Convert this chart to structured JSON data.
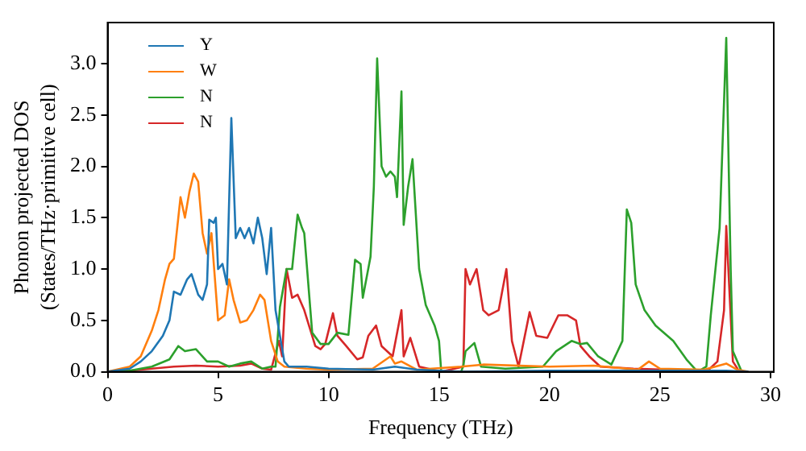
{
  "chart_data": {
    "type": "line",
    "xlabel": "Frequency (THz)",
    "ylabel": "Phonon projected DOS\n(States/THz·primitive cell)",
    "xlim": [
      0,
      30.15
    ],
    "ylim": [
      0,
      3.4
    ],
    "xticks": [
      0,
      5,
      10,
      15,
      20,
      25,
      30
    ],
    "yticks": [
      {
        "value": 0,
        "label": "0.0"
      },
      0.5,
      {
        "value": 1,
        "label": "1.0"
      },
      1.5,
      {
        "value": 2,
        "label": "2.0"
      },
      2.5,
      {
        "value": 3,
        "label": "3.0"
      }
    ],
    "legend": "top left",
    "grid": false,
    "marker": "none",
    "line_style": "solid",
    "series": [
      {
        "name": "Y",
        "color": "#1f77b4",
        "x": [
          0,
          1,
          1.5,
          2,
          2.5,
          2.8,
          3,
          3.3,
          3.6,
          3.8,
          4.1,
          4.3,
          4.5,
          4.6,
          4.8,
          4.9,
          5.0,
          5.2,
          5.4,
          5.6,
          5.8,
          6.0,
          6.2,
          6.4,
          6.6,
          6.8,
          7.0,
          7.2,
          7.4,
          7.6,
          7.8,
          8.0,
          8.2,
          9,
          10,
          12,
          13,
          14,
          16,
          20,
          28,
          29
        ],
        "values": [
          0,
          0.03,
          0.1,
          0.2,
          0.35,
          0.5,
          0.78,
          0.75,
          0.9,
          0.95,
          0.75,
          0.7,
          0.85,
          1.48,
          1.45,
          1.5,
          1.0,
          1.05,
          0.85,
          2.47,
          1.3,
          1.4,
          1.3,
          1.4,
          1.25,
          1.5,
          1.3,
          0.95,
          1.4,
          0.6,
          0.35,
          0.1,
          0.05,
          0.05,
          0.03,
          0.02,
          0.05,
          0.02,
          0,
          0.01,
          0.01,
          0
        ]
      },
      {
        "name": "W",
        "color": "#ff7f0e",
        "x": [
          0,
          1,
          1.5,
          2,
          2.3,
          2.6,
          2.8,
          3.0,
          3.3,
          3.5,
          3.7,
          3.9,
          4.1,
          4.3,
          4.5,
          4.7,
          5.0,
          5.3,
          5.5,
          5.7,
          6.0,
          6.3,
          6.6,
          6.9,
          7.1,
          7.4,
          7.7,
          8,
          9,
          10,
          12,
          12.8,
          13,
          13.3,
          14,
          16,
          17,
          20,
          22,
          24,
          24.5,
          25,
          27,
          28,
          28.5,
          29
        ],
        "values": [
          0,
          0.05,
          0.15,
          0.4,
          0.6,
          0.9,
          1.05,
          1.1,
          1.7,
          1.5,
          1.75,
          1.93,
          1.85,
          1.35,
          1.15,
          1.35,
          0.5,
          0.55,
          0.9,
          0.7,
          0.48,
          0.5,
          0.6,
          0.75,
          0.7,
          0.3,
          0.1,
          0.05,
          0.03,
          0.02,
          0.03,
          0.15,
          0.08,
          0.1,
          0.02,
          0.05,
          0.07,
          0.05,
          0.06,
          0.02,
          0.1,
          0.03,
          0.02,
          0.08,
          0.02,
          0
        ]
      },
      {
        "name": "N",
        "color": "#2ca02c",
        "x": [
          0,
          1,
          2,
          2.8,
          3.2,
          3.5,
          4,
          4.5,
          5,
          5.5,
          6,
          6.5,
          7,
          7.4,
          7.6,
          7.8,
          8.1,
          8.35,
          8.6,
          8.8,
          8.9,
          9.26,
          9.64,
          10.0,
          10.4,
          10.9,
          11.2,
          11.45,
          11.55,
          11.9,
          12.05,
          12.2,
          12.4,
          12.6,
          12.8,
          13.0,
          13.1,
          13.3,
          13.4,
          13.6,
          13.8,
          14.1,
          14.4,
          14.8,
          15.0,
          15.1,
          16.0,
          16.1,
          16.2,
          16.6,
          16.9,
          18,
          19.7,
          20.3,
          21.0,
          21.4,
          21.7,
          22.2,
          22.8,
          23.3,
          23.5,
          23.7,
          23.9,
          24.3,
          24.8,
          25.6,
          26.2,
          26.7,
          27.1,
          27.3,
          27.7,
          28.0,
          28.2,
          28.3,
          28.7
        ],
        "values": [
          0,
          0.01,
          0.05,
          0.12,
          0.25,
          0.2,
          0.22,
          0.1,
          0.1,
          0.05,
          0.08,
          0.1,
          0.03,
          0.05,
          0.05,
          0.63,
          1.0,
          1.0,
          1.53,
          1.4,
          1.35,
          0.38,
          0.27,
          0.27,
          0.38,
          0.36,
          1.09,
          1.05,
          0.72,
          1.12,
          1.8,
          3.05,
          2.0,
          1.9,
          1.95,
          1.9,
          1.7,
          2.73,
          1.43,
          1.8,
          2.07,
          1.0,
          0.65,
          0.45,
          0.3,
          0,
          0,
          0.06,
          0.2,
          0.28,
          0.05,
          0.03,
          0.05,
          0.2,
          0.3,
          0.27,
          0.28,
          0.15,
          0.07,
          0.3,
          1.58,
          1.45,
          0.85,
          0.6,
          0.45,
          0.3,
          0.12,
          0,
          0.05,
          0.55,
          1.4,
          3.25,
          1.0,
          0.2,
          0
        ]
      },
      {
        "name": "N",
        "color": "#d62728",
        "x": [
          0,
          1,
          2,
          3,
          4,
          5,
          6,
          6.5,
          7,
          7.4,
          7.75,
          7.9,
          8.1,
          8.35,
          8.6,
          8.9,
          9.4,
          9.64,
          9.85,
          10.2,
          10.4,
          10.8,
          11.3,
          11.55,
          11.8,
          12.15,
          12.4,
          12.9,
          13.3,
          13.4,
          13.7,
          14.1,
          15.1,
          16.1,
          16.2,
          16.4,
          16.7,
          17.0,
          17.25,
          17.7,
          18.05,
          18.3,
          18.6,
          19.1,
          19.4,
          19.9,
          20.4,
          20.8,
          21.2,
          21.4,
          21.8,
          22.3,
          23.8,
          25.3,
          27.1,
          27.6,
          27.9,
          28.0,
          28.3,
          28.6
        ],
        "values": [
          0,
          0.01,
          0.03,
          0.05,
          0.06,
          0.05,
          0.06,
          0.08,
          0.03,
          0.02,
          0.3,
          0.15,
          1.0,
          0.72,
          0.75,
          0.6,
          0.25,
          0.22,
          0.27,
          0.57,
          0.35,
          0.25,
          0.12,
          0.14,
          0.35,
          0.45,
          0.25,
          0.15,
          0.6,
          0.15,
          0.33,
          0.05,
          0,
          0.05,
          1.0,
          0.85,
          1.0,
          0.6,
          0.55,
          0.6,
          1.0,
          0.3,
          0.05,
          0.58,
          0.35,
          0.33,
          0.55,
          0.55,
          0.5,
          0.25,
          0.15,
          0.05,
          0.03,
          0.02,
          0,
          0.1,
          0.6,
          1.42,
          0.1,
          0
        ]
      }
    ]
  }
}
